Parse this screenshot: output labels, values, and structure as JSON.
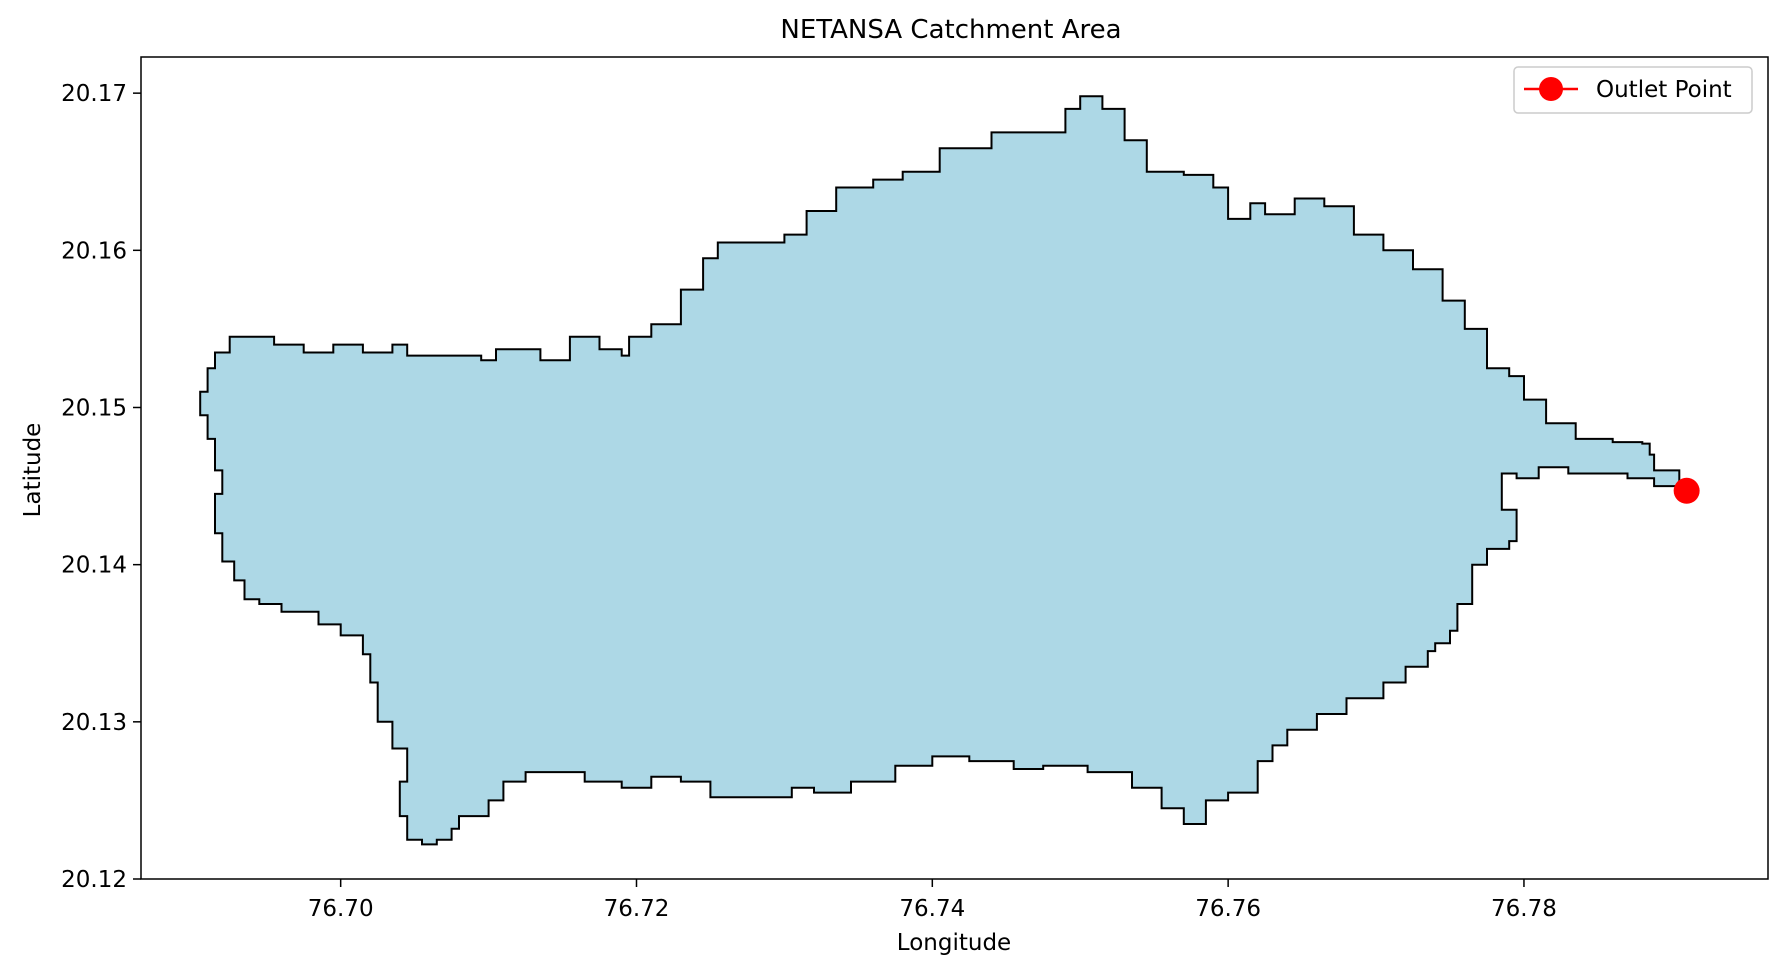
{
  "chart_data": {
    "type": "map",
    "title": "NETANSA Catchment Area",
    "xlabel": "Longitude",
    "ylabel": "Latitude",
    "xlim": [
      76.6865,
      76.7965
    ],
    "ylim": [
      20.12,
      20.1723
    ],
    "xticks": [
      76.7,
      76.72,
      76.74,
      76.76,
      76.78
    ],
    "yticks": [
      20.12,
      20.13,
      20.14,
      20.15,
      20.16,
      20.17
    ],
    "xtick_labels": [
      "76.70",
      "76.72",
      "76.74",
      "76.76",
      "76.78"
    ],
    "ytick_labels": [
      "20.12",
      "20.13",
      "20.14",
      "20.15",
      "20.16",
      "20.17"
    ],
    "grid": false,
    "legend": {
      "position": "upper-right",
      "entries": [
        {
          "label": "Outlet Point",
          "marker": "circle",
          "color": "#ff0000"
        }
      ]
    },
    "catchment": {
      "fill": "#add8e6",
      "edge": "#000000",
      "boundary": [
        [
          76.6915,
          20.1535
        ],
        [
          76.6925,
          20.1545
        ],
        [
          76.6945,
          20.1545
        ],
        [
          76.6955,
          20.154
        ],
        [
          76.6975,
          20.1535
        ],
        [
          76.6995,
          20.154
        ],
        [
          76.7015,
          20.1535
        ],
        [
          76.7035,
          20.154
        ],
        [
          76.7045,
          20.1533
        ],
        [
          76.7075,
          20.1533
        ],
        [
          76.7095,
          20.153
        ],
        [
          76.7105,
          20.1537
        ],
        [
          76.7125,
          20.1537
        ],
        [
          76.7135,
          20.153
        ],
        [
          76.7155,
          20.1545
        ],
        [
          76.7175,
          20.1537
        ],
        [
          76.719,
          20.1533
        ],
        [
          76.7195,
          20.1545
        ],
        [
          76.721,
          20.1553
        ],
        [
          76.723,
          20.1575
        ],
        [
          76.7245,
          20.1595
        ],
        [
          76.7255,
          20.1605
        ],
        [
          76.728,
          20.1605
        ],
        [
          76.73,
          20.161
        ],
        [
          76.7315,
          20.1625
        ],
        [
          76.7335,
          20.164
        ],
        [
          76.736,
          20.1645
        ],
        [
          76.738,
          20.165
        ],
        [
          76.7405,
          20.1665
        ],
        [
          76.744,
          20.1675
        ],
        [
          76.7475,
          20.1675
        ],
        [
          76.749,
          20.169
        ],
        [
          76.75,
          20.1698
        ],
        [
          76.7515,
          20.169
        ],
        [
          76.753,
          20.167
        ],
        [
          76.7545,
          20.165
        ],
        [
          76.757,
          20.1648
        ],
        [
          76.759,
          20.164
        ],
        [
          76.76,
          20.162
        ],
        [
          76.7615,
          20.163
        ],
        [
          76.7625,
          20.1623
        ],
        [
          76.7645,
          20.1633
        ],
        [
          76.7665,
          20.1628
        ],
        [
          76.7685,
          20.161
        ],
        [
          76.7705,
          20.16
        ],
        [
          76.7725,
          20.1588
        ],
        [
          76.7745,
          20.1568
        ],
        [
          76.776,
          20.155
        ],
        [
          76.7775,
          20.1525
        ],
        [
          76.779,
          20.152
        ],
        [
          76.78,
          20.1505
        ],
        [
          76.7815,
          20.149
        ],
        [
          76.7835,
          20.148
        ],
        [
          76.786,
          20.1478
        ],
        [
          76.788,
          20.1477
        ],
        [
          76.7885,
          20.147
        ],
        [
          76.7888,
          20.146
        ],
        [
          76.7905,
          20.145
        ],
        [
          76.7888,
          20.1455
        ],
        [
          76.787,
          20.1458
        ],
        [
          76.785,
          20.1458
        ],
        [
          76.783,
          20.1462
        ],
        [
          76.781,
          20.1455
        ],
        [
          76.7795,
          20.1458
        ],
        [
          76.7785,
          20.145
        ],
        [
          76.7785,
          20.1435
        ],
        [
          76.7795,
          20.1415
        ],
        [
          76.779,
          20.141
        ],
        [
          76.7775,
          20.14
        ],
        [
          76.7765,
          20.1385
        ],
        [
          76.7765,
          20.1375
        ],
        [
          76.7755,
          20.1358
        ],
        [
          76.775,
          20.135
        ],
        [
          76.774,
          20.1345
        ],
        [
          76.7735,
          20.1335
        ],
        [
          76.772,
          20.1325
        ],
        [
          76.7705,
          20.1315
        ],
        [
          76.768,
          20.1305
        ],
        [
          76.766,
          20.1295
        ],
        [
          76.764,
          20.1285
        ],
        [
          76.763,
          20.1275
        ],
        [
          76.762,
          20.1255
        ],
        [
          76.76,
          20.125
        ],
        [
          76.7585,
          20.1235
        ],
        [
          76.757,
          20.1245
        ],
        [
          76.7555,
          20.1258
        ],
        [
          76.7535,
          20.1268
        ],
        [
          76.7505,
          20.1272
        ],
        [
          76.7475,
          20.127
        ],
        [
          76.7455,
          20.1275
        ],
        [
          76.7425,
          20.1278
        ],
        [
          76.74,
          20.1272
        ],
        [
          76.7375,
          20.1262
        ],
        [
          76.7345,
          20.1255
        ],
        [
          76.732,
          20.1258
        ],
        [
          76.7305,
          20.1252
        ],
        [
          76.7275,
          20.1252
        ],
        [
          76.725,
          20.1262
        ],
        [
          76.723,
          20.1265
        ],
        [
          76.721,
          20.1258
        ],
        [
          76.719,
          20.1262
        ],
        [
          76.7165,
          20.1268
        ],
        [
          76.714,
          20.1268
        ],
        [
          76.7125,
          20.1262
        ],
        [
          76.711,
          20.125
        ],
        [
          76.71,
          20.124
        ],
        [
          76.708,
          20.1232
        ],
        [
          76.7075,
          20.1225
        ],
        [
          76.7065,
          20.1222
        ],
        [
          76.7055,
          20.1225
        ],
        [
          76.7045,
          20.124
        ],
        [
          76.704,
          20.1262
        ],
        [
          76.7045,
          20.1283
        ],
        [
          76.7035,
          20.13
        ],
        [
          76.7025,
          20.1325
        ],
        [
          76.702,
          20.1343
        ],
        [
          76.7015,
          20.1355
        ],
        [
          76.7,
          20.1362
        ],
        [
          76.6985,
          20.137
        ],
        [
          76.696,
          20.1375
        ],
        [
          76.6945,
          20.1378
        ],
        [
          76.6935,
          20.139
        ],
        [
          76.6928,
          20.1402
        ],
        [
          76.692,
          20.142
        ],
        [
          76.6915,
          20.1445
        ],
        [
          76.692,
          20.146
        ],
        [
          76.6915,
          20.148
        ],
        [
          76.691,
          20.1495
        ],
        [
          76.6905,
          20.151
        ],
        [
          76.691,
          20.1525
        ],
        [
          76.6915,
          20.1535
        ]
      ]
    },
    "outlet_point": {
      "label": "Outlet Point",
      "lon": 76.791,
      "lat": 20.1447,
      "color": "#ff0000"
    }
  }
}
